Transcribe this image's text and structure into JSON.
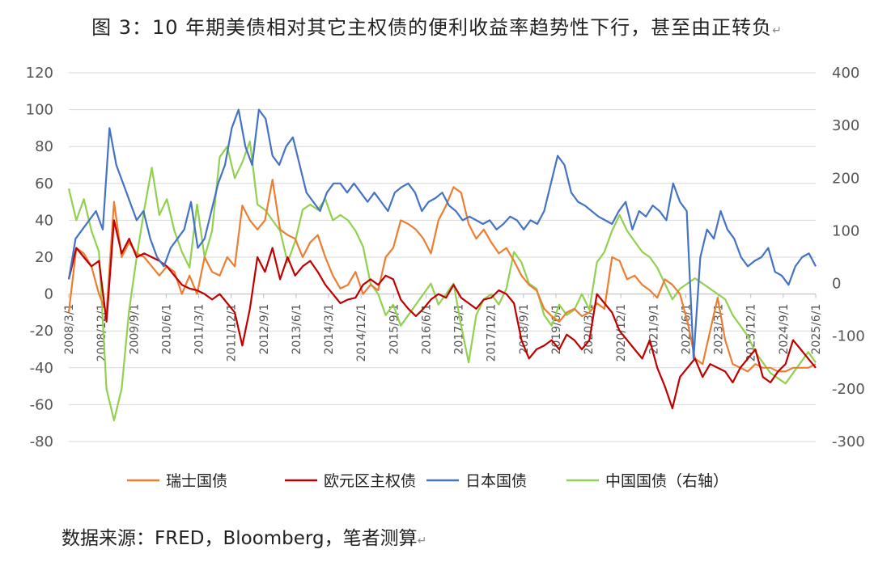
{
  "title": "图 3：10 年期美债相对其它主权债的便利收益率趋势性下行，甚至由正转负",
  "source": "数据来源：FRED，Bloomberg，笔者测算",
  "chart_data": {
    "type": "line",
    "title": "图 3：10 年期美债相对其它主权债的便利收益率趋势性下行，甚至由正转负",
    "x_ticks": [
      "2008/3/1",
      "2008/12/1",
      "2009/9/1",
      "2010/6/1",
      "2011/3/1",
      "2011/12/1",
      "2012/9/1",
      "2013/6/1",
      "2014/3/1",
      "2014/12/1",
      "2015/9/1",
      "2016/6/1",
      "2017/3/1",
      "2017/12/1",
      "2018/9/1",
      "2019/6/1",
      "2020/3/1",
      "2020/12/1",
      "2021/9/1",
      "2022/6/1",
      "2023/3/1",
      "2023/12/1",
      "2024/9/1",
      "2025/6/1"
    ],
    "left_axis": {
      "ylim": [
        -80,
        120
      ],
      "ticks": [
        -80,
        -60,
        -40,
        -20,
        0,
        20,
        40,
        60,
        80,
        100,
        120
      ]
    },
    "right_axis": {
      "ylim": [
        -300,
        400
      ],
      "ticks": [
        -300,
        -200,
        -100,
        0,
        100,
        200,
        300,
        400
      ]
    },
    "grid": true,
    "legend_position": "bottom",
    "series": [
      {
        "name": "瑞士国债",
        "color": "#ED7D31",
        "axis": "left",
        "values": [
          -10,
          25,
          22,
          15,
          0,
          -10,
          50,
          20,
          28,
          22,
          20,
          15,
          10,
          15,
          12,
          0,
          10,
          0,
          20,
          12,
          10,
          20,
          15,
          48,
          40,
          35,
          40,
          62,
          35,
          32,
          30,
          20,
          28,
          32,
          20,
          10,
          3,
          5,
          12,
          0,
          5,
          2,
          20,
          25,
          40,
          38,
          35,
          30,
          22,
          40,
          48,
          58,
          55,
          38,
          30,
          35,
          28,
          22,
          25,
          18,
          10,
          5,
          2,
          -8,
          -12,
          -15,
          -10,
          -8,
          -12,
          -10,
          -5,
          -8,
          20,
          18,
          8,
          10,
          5,
          2,
          -2,
          8,
          5,
          0,
          -15,
          -35,
          -38,
          -20,
          -2,
          -25,
          -38,
          -40,
          -42,
          -38,
          -40,
          -40,
          -42,
          -42,
          -40,
          -40,
          -40,
          -38
        ]
      },
      {
        "name": "欧元区主权债",
        "color": "#C00000",
        "axis": "left",
        "values": [
          8,
          25,
          20,
          15,
          18,
          -15,
          40,
          22,
          30,
          20,
          22,
          20,
          18,
          15,
          10,
          5,
          3,
          2,
          0,
          -3,
          0,
          -5,
          -10,
          -28,
          -8,
          20,
          12,
          25,
          8,
          20,
          10,
          15,
          18,
          12,
          5,
          0,
          -5,
          -3,
          -2,
          5,
          8,
          5,
          10,
          8,
          -3,
          -8,
          -12,
          -8,
          -3,
          0,
          -2,
          5,
          -2,
          -5,
          -8,
          -3,
          -2,
          2,
          0,
          -5,
          -25,
          -35,
          -30,
          -28,
          -25,
          -30,
          -22,
          -25,
          -30,
          -25,
          0,
          -5,
          -10,
          -20,
          -25,
          -30,
          -35,
          -25,
          -40,
          -50,
          -62,
          -45,
          -40,
          -35,
          -45,
          -38,
          -40,
          -42,
          -48,
          -40,
          -35,
          -30,
          -45,
          -48,
          -42,
          -38,
          -25,
          -30,
          -35,
          -40
        ]
      },
      {
        "name": "日本国债",
        "color": "#4472C4",
        "axis": "left",
        "values": [
          8,
          30,
          35,
          40,
          45,
          35,
          90,
          70,
          60,
          50,
          40,
          45,
          30,
          20,
          15,
          25,
          30,
          35,
          50,
          25,
          30,
          45,
          60,
          70,
          90,
          100,
          80,
          70,
          100,
          95,
          75,
          70,
          80,
          85,
          70,
          55,
          50,
          45,
          55,
          60,
          60,
          55,
          60,
          55,
          50,
          55,
          50,
          45,
          55,
          58,
          60,
          55,
          45,
          50,
          52,
          55,
          48,
          45,
          40,
          42,
          40,
          38,
          40,
          35,
          38,
          42,
          40,
          35,
          40,
          38,
          45,
          60,
          75,
          70,
          55,
          50,
          48,
          45,
          42,
          40,
          38,
          45,
          50,
          35,
          45,
          42,
          48,
          45,
          40,
          60,
          50,
          45,
          -35,
          20,
          35,
          30,
          45,
          35,
          30,
          20,
          15,
          18,
          20,
          25,
          12,
          10,
          5,
          15,
          20,
          22,
          15
        ]
      },
      {
        "name": "中国国债（右轴）",
        "color": "#92D050",
        "axis": "right",
        "values": [
          180,
          120,
          160,
          100,
          60,
          -200,
          -260,
          -200,
          -50,
          50,
          140,
          220,
          130,
          160,
          100,
          60,
          30,
          150,
          50,
          100,
          240,
          260,
          200,
          230,
          270,
          150,
          140,
          120,
          100,
          40,
          80,
          140,
          150,
          140,
          160,
          120,
          130,
          120,
          100,
          70,
          0,
          -20,
          -60,
          -40,
          -80,
          -60,
          -40,
          -20,
          0,
          -40,
          -20,
          0,
          -80,
          -150,
          -60,
          -30,
          -20,
          -40,
          -10,
          60,
          40,
          0,
          -10,
          -60,
          -80,
          -40,
          -60,
          -50,
          -20,
          -50,
          40,
          60,
          100,
          130,
          100,
          80,
          60,
          50,
          30,
          0,
          -30,
          -10,
          0,
          10,
          0,
          -10,
          -20,
          -30,
          -60,
          -80,
          -100,
          -130,
          -150,
          -170,
          -180,
          -190,
          -170,
          -150,
          -130,
          -150
        ]
      }
    ]
  }
}
